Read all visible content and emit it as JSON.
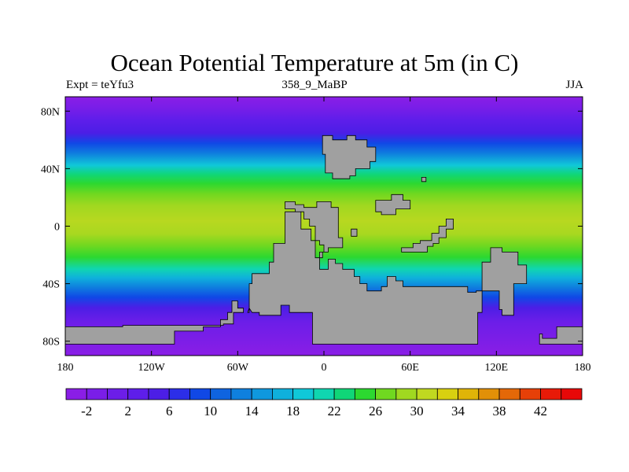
{
  "title": "Ocean Potential Temperature at 5m (in C)",
  "left_string": "Expt = teYfu3",
  "center_string": "358_9_MaBP",
  "right_string": "JJA",
  "map": {
    "lon_range": [
      -180,
      180
    ],
    "lat_range": [
      -90,
      90
    ],
    "lon_ticks": [
      {
        "value": -180,
        "label": "180"
      },
      {
        "value": -120,
        "label": "120W"
      },
      {
        "value": -60,
        "label": "60W"
      },
      {
        "value": 0,
        "label": "0"
      },
      {
        "value": 60,
        "label": "60E"
      },
      {
        "value": 120,
        "label": "120E"
      },
      {
        "value": 180,
        "label": "180"
      }
    ],
    "lat_ticks": [
      {
        "value": 80,
        "label": "80N"
      },
      {
        "value": 40,
        "label": "40N"
      },
      {
        "value": 0,
        "label": "0"
      },
      {
        "value": -40,
        "label": "40S"
      },
      {
        "value": -80,
        "label": "80S"
      }
    ],
    "land_color": "#a0a0a0",
    "land": [
      {
        "name": "northern-landmass",
        "points": [
          [
            -1,
            63
          ],
          [
            6,
            63
          ],
          [
            6,
            60
          ],
          [
            16,
            60
          ],
          [
            16,
            63
          ],
          [
            22,
            63
          ],
          [
            22,
            60
          ],
          [
            30,
            60
          ],
          [
            30,
            55
          ],
          [
            36,
            55
          ],
          [
            36,
            45
          ],
          [
            32,
            45
          ],
          [
            32,
            40
          ],
          [
            22,
            40
          ],
          [
            22,
            35
          ],
          [
            18,
            35
          ],
          [
            18,
            33
          ],
          [
            6,
            33
          ],
          [
            6,
            37
          ],
          [
            1,
            37
          ],
          [
            1,
            50
          ],
          [
            -1,
            50
          ]
        ]
      },
      {
        "name": "central-landmass",
        "points": [
          [
            -27,
            17
          ],
          [
            -20,
            17
          ],
          [
            -20,
            15
          ],
          [
            -14,
            15
          ],
          [
            -14,
            13
          ],
          [
            -5,
            13
          ],
          [
            -5,
            17
          ],
          [
            5,
            17
          ],
          [
            5,
            13
          ],
          [
            10,
            13
          ],
          [
            10,
            -8
          ],
          [
            13,
            -8
          ],
          [
            13,
            -15
          ],
          [
            3,
            -15
          ],
          [
            3,
            -18
          ],
          [
            -1,
            -18
          ],
          [
            -1,
            -22
          ],
          [
            -6,
            -22
          ],
          [
            -6,
            -10
          ],
          [
            -9,
            -10
          ],
          [
            -9,
            -2
          ],
          [
            -16,
            -2
          ],
          [
            -16,
            10
          ],
          [
            -27,
            10
          ],
          [
            -27,
            -12
          ],
          [
            -35,
            -12
          ],
          [
            -35,
            -25
          ],
          [
            -38,
            -25
          ],
          [
            -38,
            -33
          ],
          [
            -50,
            -33
          ],
          [
            -50,
            -40
          ],
          [
            -52,
            -40
          ],
          [
            -52,
            -60
          ],
          [
            -53,
            -60
          ],
          [
            -52,
            -57
          ],
          [
            -50,
            -60
          ],
          [
            -45,
            -60
          ],
          [
            -45,
            -62
          ],
          [
            -30,
            -62
          ],
          [
            -30,
            -55
          ],
          [
            -24,
            -55
          ],
          [
            -24,
            -60
          ],
          [
            -8,
            -60
          ],
          [
            -8,
            -82
          ],
          [
            107,
            -82
          ],
          [
            107,
            -60
          ],
          [
            110,
            -60
          ],
          [
            110,
            -25
          ],
          [
            116,
            -25
          ],
          [
            116,
            -15
          ],
          [
            124,
            -15
          ],
          [
            124,
            -18
          ],
          [
            135,
            -18
          ],
          [
            135,
            -27
          ],
          [
            141,
            -27
          ],
          [
            141,
            -40
          ],
          [
            132,
            -40
          ],
          [
            132,
            -62
          ],
          [
            124,
            -62
          ],
          [
            124,
            -58
          ],
          [
            122,
            -58
          ],
          [
            122,
            -45
          ],
          [
            106,
            -45
          ],
          [
            106,
            -46
          ],
          [
            100,
            -46
          ],
          [
            100,
            -42
          ],
          [
            55,
            -42
          ],
          [
            55,
            -38
          ],
          [
            50,
            -38
          ],
          [
            50,
            -35
          ],
          [
            44,
            -35
          ],
          [
            44,
            -42
          ],
          [
            40,
            -42
          ],
          [
            40,
            -45
          ],
          [
            30,
            -45
          ],
          [
            30,
            -40
          ],
          [
            25,
            -40
          ],
          [
            25,
            -35
          ],
          [
            21,
            -35
          ],
          [
            21,
            -30
          ],
          [
            13,
            -30
          ],
          [
            13,
            -26
          ],
          [
            8,
            -26
          ],
          [
            8,
            -23
          ],
          [
            3,
            -23
          ],
          [
            3,
            -30
          ],
          [
            -3,
            -30
          ],
          [
            -3,
            -18
          ],
          [
            0,
            -18
          ],
          [
            0,
            -13
          ],
          [
            -3,
            -13
          ],
          [
            -3,
            -10
          ],
          [
            -6,
            -10
          ],
          [
            -6,
            0
          ],
          [
            -10,
            0
          ],
          [
            -10,
            5
          ],
          [
            -14,
            5
          ],
          [
            -14,
            10
          ],
          [
            -20,
            10
          ],
          [
            -20,
            12
          ],
          [
            -27,
            12
          ]
        ]
      },
      {
        "name": "east-equatorial-strip",
        "points": [
          [
            54,
            -15
          ],
          [
            62,
            -15
          ],
          [
            62,
            -12
          ],
          [
            67,
            -12
          ],
          [
            67,
            -10
          ],
          [
            75,
            -10
          ],
          [
            75,
            -5
          ],
          [
            80,
            -5
          ],
          [
            80,
            0
          ],
          [
            85,
            0
          ],
          [
            85,
            5
          ],
          [
            90,
            5
          ],
          [
            90,
            -2
          ],
          [
            85,
            -2
          ],
          [
            85,
            -8
          ],
          [
            80,
            -8
          ],
          [
            80,
            -12
          ],
          [
            76,
            -12
          ],
          [
            76,
            -14
          ],
          [
            72,
            -14
          ],
          [
            72,
            -18
          ],
          [
            54,
            -18
          ]
        ]
      },
      {
        "name": "eastern-island",
        "points": [
          [
            36,
            18
          ],
          [
            47,
            18
          ],
          [
            47,
            22
          ],
          [
            55,
            22
          ],
          [
            55,
            18
          ],
          [
            60,
            18
          ],
          [
            60,
            12
          ],
          [
            50,
            12
          ],
          [
            50,
            8
          ],
          [
            40,
            8
          ],
          [
            40,
            10
          ],
          [
            36,
            10
          ]
        ]
      },
      {
        "name": "tiny-island-ne",
        "points": [
          [
            68,
            34
          ],
          [
            71,
            34
          ],
          [
            71,
            31
          ],
          [
            68,
            31
          ]
        ]
      },
      {
        "name": "equatorial-islet",
        "points": [
          [
            19,
            -2
          ],
          [
            23,
            -2
          ],
          [
            23,
            -7
          ],
          [
            19,
            -7
          ]
        ]
      },
      {
        "name": "southwest-coast",
        "points": [
          [
            -180,
            -70
          ],
          [
            -180,
            -82
          ],
          [
            -104,
            -82
          ],
          [
            -104,
            -73
          ],
          [
            -84,
            -73
          ],
          [
            -84,
            -70
          ],
          [
            -72,
            -70
          ],
          [
            -72,
            -65
          ],
          [
            -67,
            -65
          ],
          [
            -67,
            -60
          ],
          [
            -64,
            -60
          ],
          [
            -64,
            -52
          ],
          [
            -60,
            -52
          ],
          [
            -60,
            -57
          ],
          [
            -56,
            -57
          ],
          [
            -56,
            -60
          ],
          [
            -63,
            -60
          ],
          [
            -63,
            -68
          ],
          [
            -70,
            -68
          ],
          [
            -70,
            -69
          ],
          [
            -140,
            -69
          ],
          [
            -140,
            -70
          ]
        ]
      },
      {
        "name": "southeast-coast",
        "points": [
          [
            150,
            -82
          ],
          [
            180,
            -82
          ],
          [
            180,
            -70
          ],
          [
            162,
            -70
          ],
          [
            162,
            -78
          ],
          [
            152,
            -78
          ],
          [
            152,
            -75
          ],
          [
            150,
            -75
          ]
        ]
      }
    ]
  },
  "colorbar": {
    "labels": [
      "-2",
      "2",
      "6",
      "10",
      "14",
      "18",
      "22",
      "26",
      "30",
      "34",
      "38",
      "42"
    ],
    "colors": [
      "#8a1ee6",
      "#7a1ee8",
      "#6c1ee8",
      "#5e1eea",
      "#4c1ee6",
      "#2c2ee8",
      "#1048e6",
      "#0f64e0",
      "#0f80de",
      "#0f98de",
      "#0fb0dc",
      "#10c8d8",
      "#10d6b0",
      "#10d678",
      "#2cd830",
      "#70d820",
      "#a0d820",
      "#c0d820",
      "#d8d010",
      "#e0b408",
      "#e29008",
      "#e46808",
      "#e64008",
      "#e81a08",
      "#e80808"
    ]
  },
  "chart_data": {
    "type": "heatmap",
    "title": "Ocean Potential Temperature at 5m (in C)",
    "variable": "Ocean Potential Temperature at 5m",
    "units": "C",
    "experiment": "teYfu3",
    "period": "358_9_MaBP",
    "season": "JJA",
    "x_range": [
      -180,
      180
    ],
    "y_range": [
      -90,
      90
    ],
    "xticks": [
      "180",
      "120W",
      "60W",
      "0",
      "60E",
      "120E",
      "180"
    ],
    "yticks": [
      "80N",
      "40N",
      "0",
      "40S",
      "80S"
    ],
    "colorbar_labels": [
      -2,
      2,
      6,
      10,
      14,
      18,
      22,
      26,
      30,
      34,
      38,
      42
    ],
    "zonal_profile": {
      "lat": [
        -90,
        -80,
        -70,
        -60,
        -50,
        -40,
        -30,
        -20,
        -10,
        0,
        10,
        20,
        30,
        40,
        50,
        60,
        70,
        80,
        90
      ],
      "temp": [
        -2,
        -2,
        -1,
        1,
        7,
        14,
        19,
        23,
        27,
        28,
        27,
        26,
        25,
        20,
        12,
        7,
        3,
        0,
        -1
      ]
    }
  }
}
